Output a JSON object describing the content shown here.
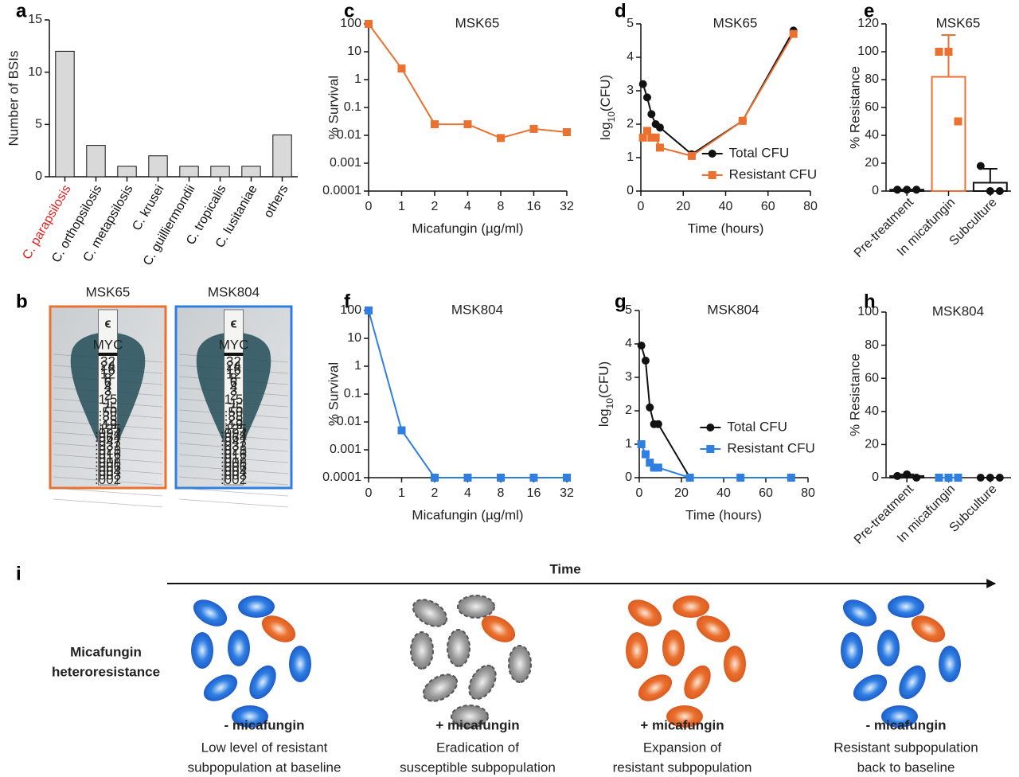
{
  "panel_labels": [
    "a",
    "b",
    "c",
    "d",
    "e",
    "f",
    "g",
    "h",
    "i"
  ],
  "chart_data": [
    {
      "type": "bar",
      "ylabel": "Number of BSIs",
      "categories": [
        "C. parapsilosis",
        "C. orthopsilosis",
        "C. metapsilosis",
        "C. krusei",
        "C. guilliermondii",
        "C. tropicalis",
        "C. lusitaniae",
        "others"
      ],
      "category_colors": [
        "#e3211c",
        "#111111",
        "#111111",
        "#111111",
        "#111111",
        "#111111",
        "#111111",
        "#111111"
      ],
      "values": [
        12,
        3,
        1,
        2,
        1,
        1,
        1,
        4
      ],
      "color": "#d9d9d9",
      "ylim": [
        0,
        15
      ],
      "yticks": [
        0,
        5,
        10,
        15
      ]
    },
    {
      "type": "line",
      "title": "MSK65",
      "xlabel": "Micafungin (µg/ml)",
      "ylabel": "% Survival",
      "log": true,
      "categories": [
        "0",
        "1",
        "2",
        "4",
        "8",
        "16",
        "32"
      ],
      "values": [
        100,
        2.5,
        0.025,
        0.025,
        0.008,
        0.017,
        0.013
      ],
      "color": "#ea7130",
      "ylim": [
        0.0001,
        100
      ],
      "yticks": [
        0.0001,
        0.001,
        0.01,
        0.1,
        1,
        10,
        100
      ]
    },
    {
      "type": "line",
      "title": "MSK65",
      "xlabel": "Time (hours)",
      "ylabel": [
        "log",
        "10",
        "(CFU)"
      ],
      "legend": "lower right",
      "series": [
        {
          "name": "Total CFU",
          "color": "#111111",
          "marker": "circle",
          "x": [
            1,
            3,
            5,
            7,
            9,
            24,
            48,
            72
          ],
          "values": [
            3.2,
            2.8,
            2.3,
            2.0,
            1.9,
            1.1,
            2.1,
            4.8
          ]
        },
        {
          "name": "Resistant CFU",
          "color": "#ea7130",
          "marker": "square",
          "x": [
            1,
            3,
            5,
            7,
            9,
            24,
            48,
            72
          ],
          "values": [
            1.6,
            1.8,
            1.6,
            1.6,
            1.3,
            1.05,
            2.1,
            4.7
          ]
        }
      ],
      "xlim": [
        0,
        80
      ],
      "xticks": [
        0,
        20,
        40,
        60,
        80
      ],
      "ylim": [
        0,
        5
      ],
      "yticks": [
        0,
        1,
        2,
        3,
        4,
        5
      ]
    },
    {
      "type": "bar",
      "title": "MSK65",
      "ylabel": "% Resistance",
      "categories": [
        "Pre-treatment",
        "In micafungin",
        "Subculture"
      ],
      "values": [
        1,
        82,
        6
      ],
      "errors": [
        0,
        30,
        10
      ],
      "points": [
        [
          1,
          1,
          1
        ],
        [
          100,
          100,
          50
        ],
        [
          18,
          0,
          0
        ]
      ],
      "colors": [
        "#111111",
        "#ea7130",
        "#111111"
      ],
      "ylim": [
        0,
        120
      ],
      "yticks": [
        0,
        20,
        40,
        60,
        80,
        100,
        120
      ]
    },
    {
      "type": "line",
      "title": "MSK804",
      "xlabel": "Micafungin (µg/ml)",
      "ylabel": "% Survival",
      "log": true,
      "categories": [
        "0",
        "1",
        "2",
        "4",
        "8",
        "16",
        "32"
      ],
      "values": [
        100,
        0.005,
        0.0001,
        0.0001,
        0.0001,
        0.0001,
        0.0001
      ],
      "color": "#2f7fe3",
      "ylim": [
        0.0001,
        100
      ],
      "yticks": [
        0.0001,
        0.001,
        0.01,
        0.1,
        1,
        10,
        100
      ]
    },
    {
      "type": "line",
      "title": "MSK804",
      "xlabel": "Time (hours)",
      "ylabel": [
        "log",
        "10",
        "(CFU)"
      ],
      "legend": "center right",
      "series": [
        {
          "name": "Total CFU",
          "color": "#111111",
          "marker": "circle",
          "x": [
            1,
            3,
            5,
            7,
            9,
            24,
            48,
            72
          ],
          "values": [
            3.95,
            3.5,
            2.1,
            1.6,
            1.6,
            0,
            0,
            0
          ]
        },
        {
          "name": "Resistant CFU",
          "color": "#2f7fe3",
          "marker": "square",
          "x": [
            1,
            3,
            5,
            7,
            9,
            24,
            48,
            72
          ],
          "values": [
            1.0,
            0.7,
            0.45,
            0.3,
            0.3,
            0,
            0,
            0
          ]
        }
      ],
      "xlim": [
        0,
        80
      ],
      "xticks": [
        0,
        20,
        40,
        60,
        80
      ],
      "ylim": [
        0,
        5
      ],
      "yticks": [
        0,
        1,
        2,
        3,
        4,
        5
      ]
    },
    {
      "type": "bar",
      "title": "MSK804",
      "ylabel": "% Resistance",
      "categories": [
        "Pre-treatment",
        "In micafungin",
        "Subculture"
      ],
      "values": [
        1,
        0,
        0
      ],
      "errors": [
        1,
        0,
        0
      ],
      "points": [
        [
          1,
          2,
          0
        ],
        [
          0,
          0,
          0
        ],
        [
          0,
          0,
          0
        ]
      ],
      "colors": [
        "#111111",
        "#2f7fe3",
        "#111111"
      ],
      "ylim": [
        0,
        100
      ],
      "yticks": [
        0,
        20,
        40,
        60,
        80,
        100
      ]
    }
  ],
  "etest": {
    "strains": [
      "MSK65",
      "MSK804"
    ],
    "colors": [
      "#ea7130",
      "#2f7fe3"
    ],
    "brand": "MYC",
    "scale": [
      "32",
      "24",
      "16",
      "12",
      "8",
      "6",
      "4",
      "3",
      "2",
      "1.5",
      "1",
      ".75",
      ".50",
      ".38",
      ".25",
      ".19",
      ".125",
      ".094",
      ".064",
      ".047",
      ".032",
      ".023",
      ".016",
      ".012",
      ".008",
      ".006",
      ".004",
      ".003",
      ".002"
    ]
  },
  "diagram": {
    "time_label": "Time",
    "row_label": [
      "Micafungin",
      "heteroresistance"
    ],
    "stages": [
      {
        "heading": "- micafungin",
        "text": [
          "Low level of resistant",
          "subpopulation at baseline"
        ]
      },
      {
        "heading": "+ micafungin",
        "text": [
          "Eradication of",
          "susceptible subpopulation"
        ]
      },
      {
        "heading": "+ micafungin",
        "text": [
          "Expansion of",
          "resistant subpopulation"
        ]
      },
      {
        "heading": "- micafungin",
        "text": [
          "Resistant subpopulation",
          "back to baseline"
        ]
      }
    ]
  }
}
